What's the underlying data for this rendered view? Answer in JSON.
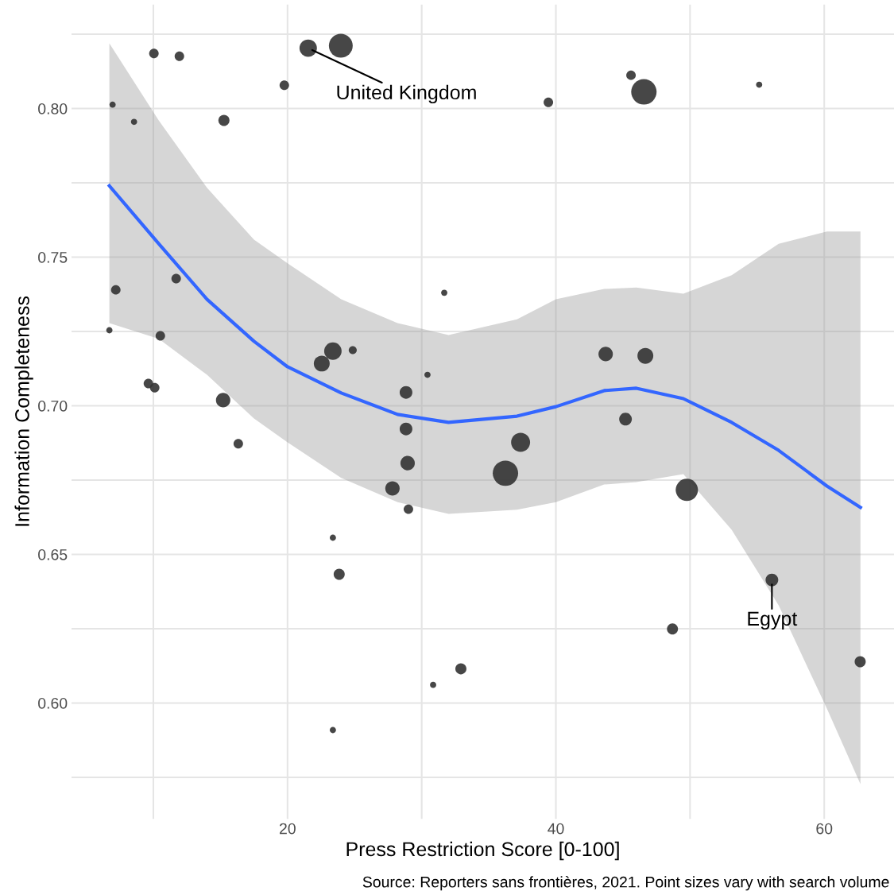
{
  "chart_data": {
    "type": "bubble",
    "xlabel": "Press Restriction Score [0-100]",
    "ylabel": "Information Completeness",
    "xlim": [
      3.9,
      65.2
    ],
    "ylim": [
      0.561,
      0.835
    ],
    "xticks": [
      {
        "value": 10,
        "label": null
      },
      20,
      {
        "value": 30,
        "label": null
      },
      40,
      {
        "value": 50,
        "label": null
      },
      60
    ],
    "yticks": [
      {
        "value": 0.575,
        "label": null
      },
      {
        "value": 0.6,
        "label": "0.60"
      },
      {
        "value": 0.625,
        "label": null
      },
      0.65,
      {
        "value": 0.675,
        "label": null
      },
      {
        "value": 0.7,
        "label": "0.70"
      },
      {
        "value": 0.725,
        "label": null
      },
      0.75,
      {
        "value": 0.775,
        "label": null
      },
      {
        "value": 0.8,
        "label": "0.80"
      },
      {
        "value": 0.825,
        "label": null
      }
    ],
    "grid": true,
    "legend": false,
    "series": [
      {
        "color": "#333333",
        "x": [
          6.96,
          10.04,
          11.94,
          21.54,
          23.97,
          19.76,
          8.56,
          15.26,
          39.44,
          45.6,
          46.56,
          55.15,
          6.72,
          7.2,
          11.7,
          10.52,
          31.68,
          23.38,
          22.55,
          24.86,
          30.43,
          9.63,
          10.1,
          15.2,
          16.33,
          28.83,
          28.83,
          28.95,
          27.82,
          29.01,
          36.24,
          37.37,
          43.71,
          46.67,
          45.19,
          49.76,
          56.1,
          48.69,
          62.68,
          23.38,
          23.85,
          32.92,
          30.85,
          23.38
        ],
        "values": [
          0.8013,
          0.8185,
          0.8176,
          0.8203,
          0.8211,
          0.8078,
          0.7955,
          0.796,
          0.8021,
          0.8112,
          0.8056,
          0.808,
          0.7254,
          0.739,
          0.7428,
          0.7235,
          0.738,
          0.7184,
          0.7142,
          0.7187,
          0.7104,
          0.7075,
          0.7061,
          0.7019,
          0.6872,
          0.7045,
          0.6922,
          0.6807,
          0.6722,
          0.6652,
          0.6773,
          0.6877,
          0.7174,
          0.7168,
          0.6955,
          0.6717,
          0.6414,
          0.6249,
          0.6139,
          0.6556,
          0.6433,
          0.6115,
          0.6061,
          0.5909
        ],
        "sizes": [
          0.06,
          0.14,
          0.14,
          0.47,
          0.88,
          0.14,
          0.06,
          0.19,
          0.14,
          0.14,
          1,
          0.06,
          0.06,
          0.14,
          0.14,
          0.14,
          0.06,
          0.47,
          0.39,
          0.1,
          0.06,
          0.14,
          0.14,
          0.32,
          0.14,
          0.25,
          0.25,
          0.32,
          0.32,
          0.14,
          1,
          0.56,
          0.32,
          0.39,
          0.25,
          0.77,
          0.25,
          0.19,
          0.19,
          0.06,
          0.19,
          0.19,
          0.06,
          0.06
        ]
      },
      {
        "type": "line",
        "color": "#3366ff",
        "x": [
          6.72,
          10.4,
          14.0,
          17.5,
          20,
          24,
          28.2,
          32,
          37.1,
          40,
          43.6,
          46,
          49.5,
          53.1,
          56.6,
          60.2,
          62.7
        ],
        "values": [
          0.774,
          0.7545,
          0.7358,
          0.7217,
          0.7131,
          0.7043,
          0.6971,
          0.6944,
          0.6965,
          0.6997,
          0.7051,
          0.7059,
          0.7024,
          0.6944,
          0.685,
          0.673,
          0.6658
        ],
        "lower": [
          0.7278,
          0.7225,
          0.7104,
          0.6957,
          0.6877,
          0.6757,
          0.6676,
          0.6636,
          0.665,
          0.6676,
          0.6735,
          0.6743,
          0.677,
          0.6583,
          0.6329,
          0.5981,
          0.5727
        ],
        "upper": [
          0.8219,
          0.796,
          0.7733,
          0.7559,
          0.7479,
          0.7358,
          0.7278,
          0.7238,
          0.7291,
          0.7358,
          0.7393,
          0.7398,
          0.7377,
          0.7439,
          0.7545,
          0.7586,
          0.7586
        ]
      }
    ],
    "annotations": [
      {
        "text": "United Kingdom",
        "x": 21.54,
        "y": 0.8203
      },
      {
        "text": "Egypt",
        "x": 56.1,
        "y": 0.6414
      },
      "Source: Reporters sans frontières, 2021. Point sizes vary with search volume"
    ]
  }
}
